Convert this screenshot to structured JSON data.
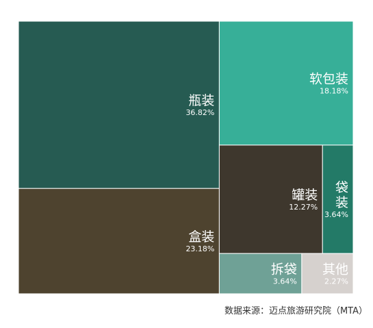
{
  "chart_data": {
    "type": "treemap",
    "total_area_ratio": "percent",
    "items": [
      {
        "name": "瓶装",
        "label_lines": [
          "瓶装"
        ],
        "value": 36.82,
        "value_label": "36.82%",
        "color": "#265B52",
        "text_color": "#ffffff"
      },
      {
        "name": "盒装",
        "label_lines": [
          "盒装"
        ],
        "value": 23.18,
        "value_label": "23.18%",
        "color": "#4E432F",
        "text_color": "#ffffff"
      },
      {
        "name": "软包装",
        "label_lines": [
          "软包装"
        ],
        "value": 18.18,
        "value_label": "18.18%",
        "color": "#37AF98",
        "text_color": "#ffffff"
      },
      {
        "name": "罐装",
        "label_lines": [
          "罐装"
        ],
        "value": 12.27,
        "value_label": "12.27%",
        "color": "#3E372D",
        "text_color": "#ffffff"
      },
      {
        "name": "袋装",
        "label_lines": [
          "袋",
          "装"
        ],
        "value": 3.64,
        "value_label": "3.64%",
        "color": "#237A67",
        "text_color": "#ffffff"
      },
      {
        "name": "拆袋",
        "label_lines": [
          "拆袋"
        ],
        "value": 3.64,
        "value_label": "3.64%",
        "color": "#6FA196",
        "text_color": "#ffffff"
      },
      {
        "name": "其他",
        "label_lines": [
          "其他"
        ],
        "value": 2.27,
        "value_label": "2.27%",
        "color": "#D6D1CE",
        "text_color": "#ffffff"
      }
    ]
  },
  "footer": {
    "source": "数据来源：迈点旅游研究院（MTA）"
  }
}
